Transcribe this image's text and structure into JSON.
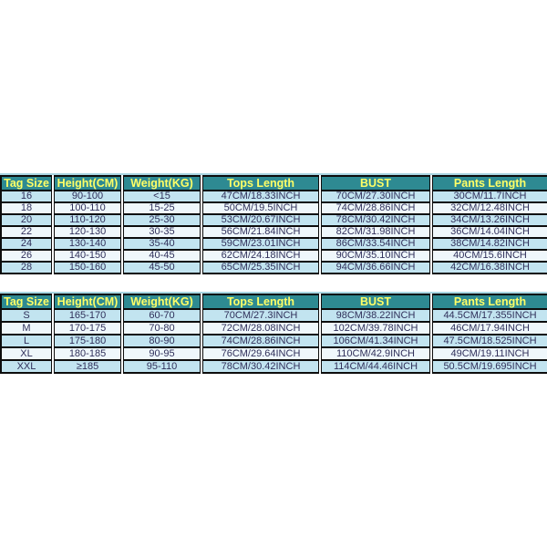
{
  "colors": {
    "page_bg": "#ffffff",
    "header_bg": "#2e8a92",
    "header_text": "#ffff66",
    "row_odd": "#c2e4f0",
    "row_even": "#eff7fb",
    "cell_text": "#30305a",
    "border": "#0d0d0d",
    "table_top_edge": "#a9d6e2"
  },
  "tables": [
    {
      "name": "kids-size-chart",
      "columns": [
        "Tag Size",
        "Height(CM)",
        "Weight(KG)",
        "Tops Length",
        "BUST",
        "Pants Length"
      ],
      "rows": [
        [
          "16",
          "90-100",
          "<15",
          "47CM/18.33INCH",
          "70CM/27.30INCH",
          "30CM/11.7INCH"
        ],
        [
          "18",
          "100-110",
          "15-25",
          "50CM/19.5INCH",
          "74CM/28.86INCH",
          "32CM/12.48INCH"
        ],
        [
          "20",
          "110-120",
          "25-30",
          "53CM/20.67INCH",
          "78CM/30.42INCH",
          "34CM/13.26INCH"
        ],
        [
          "22",
          "120-130",
          "30-35",
          "56CM/21.84INCH",
          "82CM/31.98INCH",
          "36CM/14.04INCH"
        ],
        [
          "24",
          "130-140",
          "35-40",
          "59CM/23.01INCH",
          "86CM/33.54INCH",
          "38CM/14.82INCH"
        ],
        [
          "26",
          "140-150",
          "40-45",
          "62CM/24.18INCH",
          "90CM/35.10INCH",
          "40CM/15.6INCH"
        ],
        [
          "28",
          "150-160",
          "45-50",
          "65CM/25.35INCH",
          "94CM/36.66INCH",
          "42CM/16.38INCH"
        ]
      ]
    },
    {
      "name": "adult-size-chart",
      "columns": [
        "Tag Size",
        "Height(CM)",
        "Weight(KG)",
        "Tops Length",
        "BUST",
        "Pants Length"
      ],
      "rows": [
        [
          "S",
          "165-170",
          "60-70",
          "70CM/27.3INCH",
          "98CM/38.22INCH",
          "44.5CM/17.355INCH"
        ],
        [
          "M",
          "170-175",
          "70-80",
          "72CM/28.08INCH",
          "102CM/39.78INCH",
          "46CM/17.94INCH"
        ],
        [
          "L",
          "175-180",
          "80-90",
          "74CM/28.86INCH",
          "106CM/41.34INCH",
          "47.5CM/18.525INCH"
        ],
        [
          "XL",
          "180-185",
          "90-95",
          "76CM/29.64INCH",
          "110CM/42.9INCH",
          "49CM/19.11INCH"
        ],
        [
          "XXL",
          "≥185",
          "95-110",
          "78CM/30.42INCH",
          "114CM/44.46INCH",
          "50.5CM/19.695INCH"
        ]
      ]
    }
  ]
}
